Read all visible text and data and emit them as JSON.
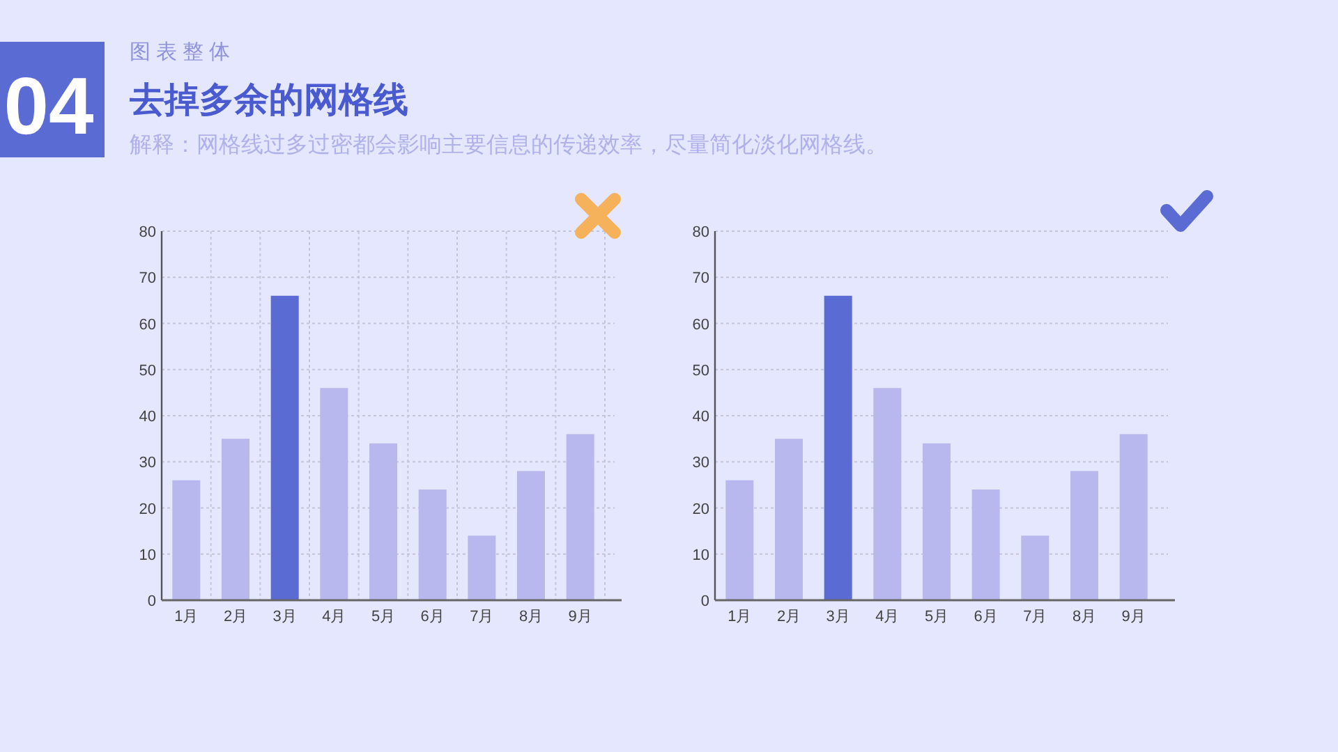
{
  "chart_data": [
    {
      "type": "other",
      "title": "去掉多余的网格线",
      "subtitle": "解释：网格线过多过密都会影响主要信息的传递效率，尽量简化淡化网格线。",
      "annotations": [
        "04",
        "图表整体"
      ]
    },
    {
      "type": "bar",
      "categories": [
        "1月",
        "2月",
        "3月",
        "4月",
        "5月",
        "6月",
        "7月",
        "8月",
        "9月"
      ],
      "values": [
        26,
        35,
        66,
        46,
        34,
        24,
        14,
        28,
        36
      ],
      "colors": [
        "#b9b8ee",
        "#b9b8ee",
        "#5a6bd4",
        "#b9b8ee",
        "#b9b8ee",
        "#b9b8ee",
        "#b9b8ee",
        "#b9b8ee",
        "#b9b8ee"
      ],
      "ylim": [
        0,
        80
      ],
      "yticks": [
        0,
        10,
        20,
        30,
        40,
        50,
        60,
        70,
        80
      ],
      "grid": true
    },
    {
      "type": "bar",
      "categories": [
        "1月",
        "2月",
        "3月",
        "4月",
        "5月",
        "6月",
        "7月",
        "8月",
        "9月"
      ],
      "values": [
        26,
        35,
        66,
        46,
        34,
        24,
        14,
        28,
        36
      ],
      "colors": [
        "#b9b8ee",
        "#b9b8ee",
        "#5a6bd4",
        "#b9b8ee",
        "#b9b8ee",
        "#b9b8ee",
        "#b9b8ee",
        "#b9b8ee",
        "#b9b8ee"
      ],
      "ylim": [
        0,
        80
      ],
      "yticks": [
        0,
        10,
        20,
        30,
        40,
        50,
        60,
        70,
        80
      ],
      "grid": "y"
    }
  ]
}
